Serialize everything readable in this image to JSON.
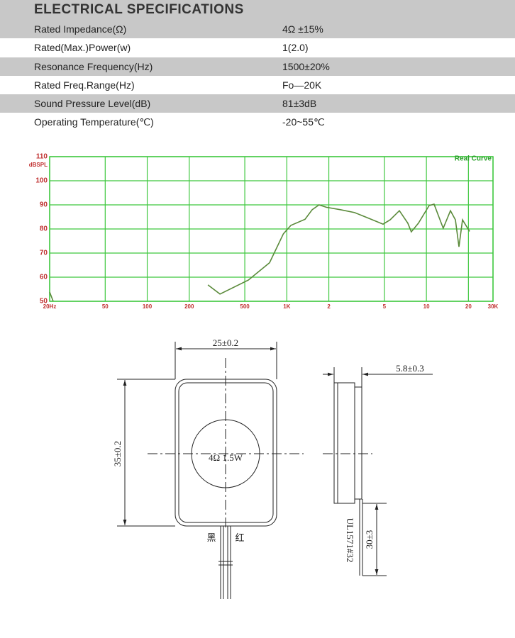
{
  "header": {
    "title": "ELECTRICAL SPECIFICATIONS"
  },
  "table": {
    "rows": [
      [
        "Rated Impedance(Ω)",
        "4Ω ±15%"
      ],
      [
        "Rated(Max.)Power(w)",
        "1(2.0)"
      ],
      [
        "Resonance Frequency(Hz)",
        "1500±20%"
      ],
      [
        "Rated Freq.Range(Hz)",
        "Fo—20K"
      ],
      [
        "Sound Pressure Level(dB)",
        "81±3dB"
      ],
      [
        "Operating Temperature(℃)",
        "-20~55℃"
      ]
    ]
  },
  "chart_data": {
    "type": "line",
    "ylabel": "dBSPL",
    "annotation": "Real Curve",
    "xscale": "log",
    "grid": true,
    "color": "#5a8a3a",
    "grid_color": "#3ec83e",
    "xlim": [
      20,
      30000
    ],
    "ylim": [
      50,
      110
    ],
    "xticks": [
      {
        "value": 20,
        "label": "20Hz"
      },
      50,
      100,
      200,
      500,
      {
        "value": 1000,
        "label": "1K"
      },
      {
        "value": 2000,
        "label": "2"
      },
      {
        "value": 5000,
        "label": "5"
      },
      {
        "value": 10000,
        "label": "10"
      },
      {
        "value": 20000,
        "label": "20"
      },
      {
        "value": 30000,
        "label": "30K"
      }
    ],
    "yticks": [
      50,
      60,
      70,
      80,
      90,
      100,
      110
    ],
    "x": [
      20,
      21.2,
      220,
      272,
      332,
      530,
      752,
      945,
      1070,
      1350,
      1520,
      1700,
      1920,
      2420,
      3060,
      3870,
      4890,
      5500,
      6400,
      7360,
      7790,
      8770,
      10450,
      11350,
      13200,
      14860,
      16140,
      17110,
      18130,
      20380
    ],
    "values": [
      53.8,
      50,
      null,
      56.8,
      53,
      58.8,
      66,
      78,
      81.5,
      84,
      88,
      90,
      89,
      88,
      86.8,
      84.4,
      82,
      83.8,
      87.6,
      82.4,
      78.8,
      82.4,
      89.7,
      90.3,
      80.3,
      87.6,
      83.8,
      72.6,
      83.8,
      79
    ]
  },
  "drawing": {
    "width_label": "25±0.2",
    "height_label": "35±0.2",
    "center_label": "4Ω  1.5W",
    "thickness_label": "5.8±0.3",
    "wire_label": "UL1571#32",
    "wire_length_label": "30±3",
    "wire_black": "黑",
    "wire_red": "红"
  }
}
